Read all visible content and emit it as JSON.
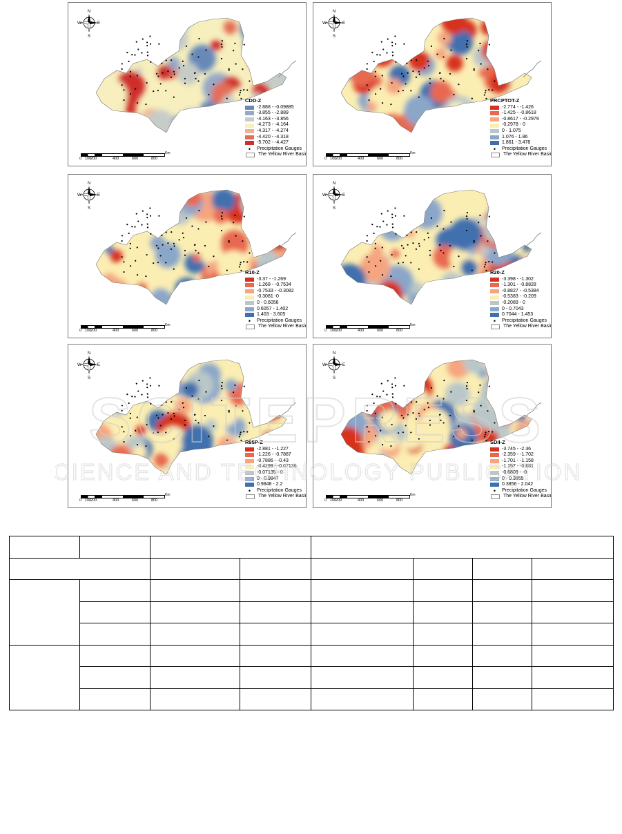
{
  "compass": {
    "n": "N",
    "s": "S",
    "e": "E",
    "w": "W"
  },
  "scale": {
    "ticks": [
      "0",
      "100",
      "200",
      "400",
      "600",
      "800"
    ],
    "unit": "Km"
  },
  "legend_common": {
    "gauges": "Precipitation  Gauges",
    "basin": "The Yellow River Basin"
  },
  "colors": {
    "c1": "#d7301f",
    "c2": "#e8694f",
    "c3": "#f5a57f",
    "c4": "#fbeeb3",
    "c5": "#b9c7c9",
    "c6": "#8aa6c9",
    "c7": "#3f6fae"
  },
  "panels": [
    {
      "title": "CDD-Z",
      "classes": [
        "-2.888 - -0.09885",
        "-3.855 - -2.889",
        "-4.163 - -3.856",
        "-4.273 - -4.164",
        "-4.317 - -4.274",
        "-4.420 - -4.318",
        "-5.702 - -4.427"
      ],
      "swatches": [
        "#6789b8",
        "#95a9c6",
        "#c6ccc8",
        "#f7efbd",
        "#f2b08e",
        "#e36e57",
        "#cf2e2a"
      ]
    },
    {
      "title": "PRCPTOT-Z",
      "classes": [
        "-2.774 - -1.426",
        "-1.425 - -0.8618",
        "-0.8617 - -0.2979",
        "-0.2978 - 0",
        "0 - 1.075",
        "1.076 - 1.86",
        "1.861 - 3.478"
      ],
      "swatches": [
        "#d7301f",
        "#e8694f",
        "#f5a57f",
        "#fbeeb3",
        "#b9c7c9",
        "#8aa6c9",
        "#3f6fae"
      ]
    },
    {
      "title": "R10-Z",
      "classes": [
        "-3.37 - -1.269",
        "-1.268 - -0.7534",
        "-0.7533 - -0.3082",
        "-0.3081 -0",
        "0 - 0.6056",
        "0.6057 - 1.402",
        "1.403 - 3.605"
      ],
      "swatches": [
        "#d7301f",
        "#e8694f",
        "#f5a57f",
        "#fbeeb3",
        "#b9c7c9",
        "#8aa6c9",
        "#3f6fae"
      ]
    },
    {
      "title": "R20-Z",
      "classes": [
        "-3.398 - -1.302",
        "-1.301 - -0.8828",
        "-0.8827 - -0.5384",
        "-0.5383 - -0.209",
        "-0.2089 - 0",
        "0 - 0.7043",
        "0.7044 - 1.453"
      ],
      "swatches": [
        "#d7301f",
        "#e8694f",
        "#f5a57f",
        "#fbeeb3",
        "#b9c7c9",
        "#8aa6c9",
        "#3f6fae"
      ]
    },
    {
      "title": "R95P-Z",
      "classes": [
        "-2.881 - -1.227",
        "-1.226 - -0.7887",
        "-0.7886 - -0.43",
        "-0.4299 - -0.07136",
        "-0.07135 - 0",
        "0 - 0.9847",
        "0.9848 - 2.2"
      ],
      "swatches": [
        "#d7301f",
        "#e8694f",
        "#f5a57f",
        "#fbeeb3",
        "#b9c7c9",
        "#8aa6c9",
        "#3f6fae"
      ]
    },
    {
      "title": "SDII-Z",
      "classes": [
        "-3.745 - -2.36",
        "-2.359 - -1.702",
        "-1.701 - -1.158",
        "-1.157 - -0.681",
        "-0.6809 - -0",
        "0 - 0.3855",
        "0.3856 - 2.042"
      ],
      "swatches": [
        "#d7301f",
        "#e8694f",
        "#f5a57f",
        "#fbeeb3",
        "#b9c7c9",
        "#8aa6c9",
        "#3f6fae"
      ]
    }
  ],
  "watermark": {
    "line1": "SCITEPRESS",
    "line2": "SCIENCE AND TECHNOLOGY PUBLICATIONS"
  }
}
